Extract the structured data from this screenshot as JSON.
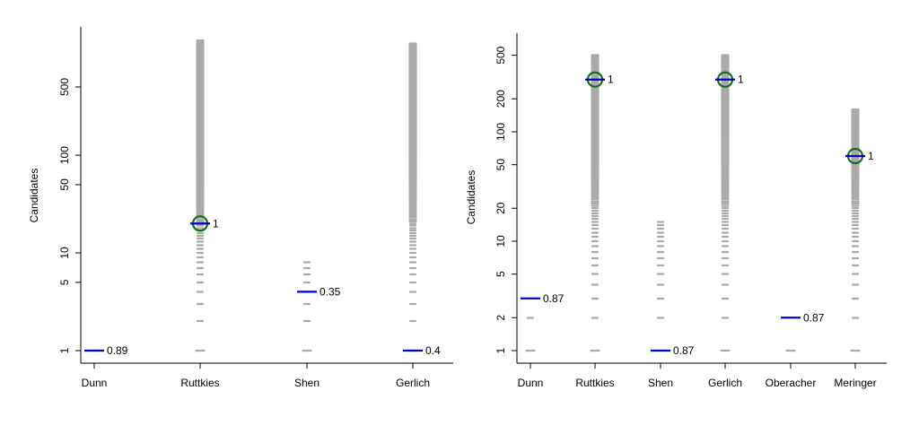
{
  "chart_data": [
    {
      "type": "strip",
      "ylabel": "Candidates",
      "yscale": "log",
      "ylim": [
        1,
        1500
      ],
      "yticks": [
        1,
        5,
        10,
        50,
        100,
        500
      ],
      "categories": [
        "Dunn",
        "Ruttkies",
        "Shen",
        "Gerlich"
      ],
      "ranges": [
        [
          1,
          1
        ],
        [
          1,
          1500
        ],
        [
          1,
          8
        ],
        [
          1,
          1400
        ]
      ],
      "markers": [
        {
          "category": "Dunn",
          "y": 1,
          "label": "0.89",
          "circle": false
        },
        {
          "category": "Ruttkies",
          "y": 20,
          "label": "1",
          "circle": true
        },
        {
          "category": "Shen",
          "y": 4,
          "label": "0.35",
          "circle": false
        },
        {
          "category": "Gerlich",
          "y": 1,
          "label": "0.4",
          "circle": false
        }
      ],
      "colors": {
        "marker": "#0000cc",
        "circle": "#1a6b1a",
        "candidates": "#aaaaaa"
      }
    },
    {
      "type": "strip",
      "ylabel": "Candidates",
      "yscale": "log",
      "ylim": [
        1,
        600
      ],
      "yticks": [
        1,
        2,
        5,
        10,
        20,
        50,
        100,
        200,
        500
      ],
      "categories": [
        "Dunn",
        "Ruttkies",
        "Shen",
        "Gerlich",
        "Oberacher",
        "Meringer"
      ],
      "ranges": [
        [
          1,
          2
        ],
        [
          1,
          500
        ],
        [
          1,
          15
        ],
        [
          1,
          500
        ],
        [
          1,
          1
        ],
        [
          1,
          160
        ]
      ],
      "markers": [
        {
          "category": "Dunn",
          "y": 3,
          "label": "0.87",
          "circle": false
        },
        {
          "category": "Ruttkies",
          "y": 300,
          "label": "1",
          "circle": true
        },
        {
          "category": "Shen",
          "y": 1,
          "label": "0.87",
          "circle": false
        },
        {
          "category": "Gerlich",
          "y": 300,
          "label": "1",
          "circle": true
        },
        {
          "category": "Oberacher",
          "y": 2,
          "label": "0.87",
          "circle": false
        },
        {
          "category": "Meringer",
          "y": 60,
          "label": "1",
          "circle": true
        }
      ],
      "colors": {
        "marker": "#0000cc",
        "circle": "#1a6b1a",
        "candidates": "#aaaaaa"
      }
    }
  ]
}
